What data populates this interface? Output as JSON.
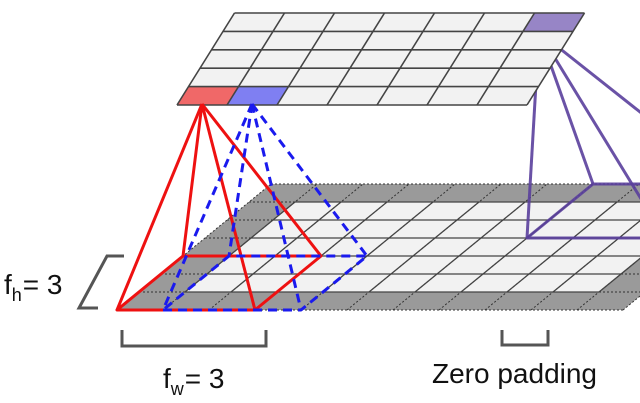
{
  "labels": {
    "fh_var": "f",
    "fh_sub": "h",
    "fh_val": "= 3",
    "fw_var": "f",
    "fw_sub": "w",
    "fw_val": "= 3",
    "zero_padding": "Zero padding"
  },
  "grids": {
    "top_layer": {
      "rows": 5,
      "cols": 7
    },
    "input_layer": {
      "rows": 5,
      "cols": 9,
      "padded_rows": 7,
      "padded_cols": 11
    }
  },
  "colors": {
    "grid_line": "#444444",
    "cell_fill": "#f2f2f2",
    "padding_fill": "#9a9a9a",
    "red": "#ee1111",
    "red_cell": "#f06868",
    "blue": "#1a1aee",
    "blue_cell": "#7f7ff2",
    "purple": "#5a3f9c",
    "purple_cell": "#9785c6",
    "bracket": "#555555"
  }
}
